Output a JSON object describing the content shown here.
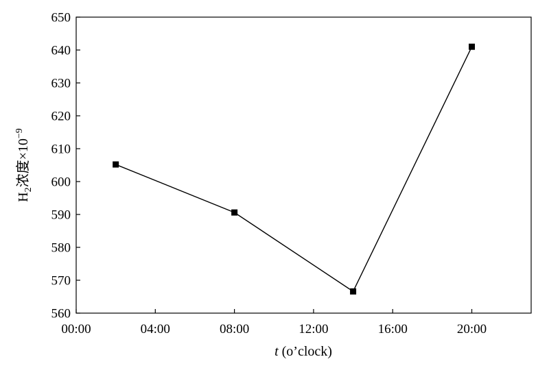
{
  "chart_data": {
    "type": "line",
    "xlabel_italic": "t",
    "xlabel_rest": " (o’clock)",
    "ylabel_main": "H",
    "ylabel_sub": "2",
    "ylabel_rest": "浓度×10",
    "ylabel_sup": "−9",
    "x_tick_labels": [
      "00:00",
      "04:00",
      "08:00",
      "12:00",
      "16:00",
      "20:00"
    ],
    "x_ticks_hours": [
      0,
      4,
      8,
      12,
      16,
      20
    ],
    "xlim_hours": [
      0,
      23
    ],
    "y_ticks": [
      560,
      570,
      580,
      590,
      600,
      610,
      620,
      630,
      640,
      650
    ],
    "ylim": [
      560,
      650
    ],
    "grid": false,
    "series": [
      {
        "marker": "square",
        "color": "#000000",
        "points": [
          {
            "x": "02:00",
            "y": 605.2
          },
          {
            "x": "08:00",
            "y": 590.6
          },
          {
            "x": "14:00",
            "y": 566.6
          },
          {
            "x": "20:00",
            "y": 641.0
          }
        ]
      }
    ]
  }
}
